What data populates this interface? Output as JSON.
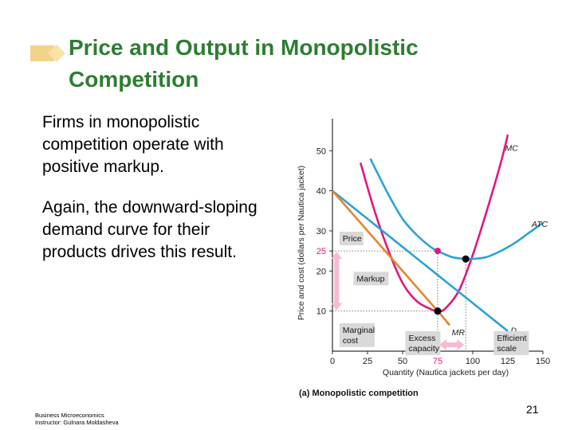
{
  "slide": {
    "title_line1": "Price and Output in Monopolistic",
    "title_line2": "Competition",
    "paragraph1": "Firms in monopolistic competition operate with positive markup.",
    "paragraph2": "Again, the downward-sloping demand curve for their products drives this result.",
    "footer_line1": "Business Microeconomics",
    "footer_line2": "Instructor: Gulnara Moldasheva",
    "page_number": "21"
  },
  "colors": {
    "title": "#2e7d32",
    "title_deco": "#f3d28a",
    "mc": "#e0187f",
    "atc": "#29a3d8",
    "demand": "#29a3d8",
    "mr": "#e8842a",
    "pink_marker": "#f06aa9",
    "label_box": "#d9d9d9",
    "arrow": "#f7b9d3"
  },
  "chart_data": {
    "type": "line",
    "title": "(a) Monopolistic competition",
    "xlabel": "Quantity (Nautica jackets per day)",
    "ylabel": "Price and cost (dollars per Nautica jacket)",
    "xlim": [
      0,
      150
    ],
    "ylim": [
      0,
      58
    ],
    "xticks": [
      {
        "value": 0,
        "label": "0"
      },
      {
        "value": 25,
        "label": "25"
      },
      {
        "value": 50,
        "label": "50"
      },
      {
        "value": 75,
        "label": "75",
        "highlight": true
      },
      {
        "value": 100,
        "label": "100"
      },
      {
        "value": 125,
        "label": "125"
      },
      {
        "value": 150,
        "label": "150"
      }
    ],
    "yticks": [
      {
        "value": 10,
        "label": "10"
      },
      {
        "value": 20,
        "label": "20"
      },
      {
        "value": 25,
        "label": "25",
        "highlight": true
      },
      {
        "value": 30,
        "label": "30"
      },
      {
        "value": 40,
        "label": "40"
      },
      {
        "value": 50,
        "label": "50"
      }
    ],
    "series": [
      {
        "name": "MC",
        "color": "#e0187f",
        "x": [
          20,
          30,
          40,
          50,
          60,
          70,
          75,
          80,
          90,
          100,
          110,
          120,
          125
        ],
        "y": [
          47,
          35,
          25,
          17,
          12.5,
          10.5,
          10,
          10.5,
          15,
          24,
          35,
          47,
          54
        ]
      },
      {
        "name": "ATC",
        "color": "#29a3d8",
        "x": [
          27,
          40,
          50,
          60,
          70,
          75,
          85,
          95,
          100,
          110,
          120,
          130,
          140,
          150
        ],
        "y": [
          48,
          39,
          33,
          29,
          26,
          25,
          23.5,
          23,
          23,
          23.5,
          25,
          27,
          29.5,
          32
        ]
      },
      {
        "name": "D",
        "color": "#29a3d8",
        "x": [
          0,
          125
        ],
        "y": [
          40,
          5
        ]
      },
      {
        "name": "MR",
        "color": "#e8842a",
        "x": [
          0,
          75,
          82
        ],
        "y": [
          40,
          10,
          7
        ]
      }
    ],
    "points": [
      {
        "x": 75,
        "y": 25,
        "color": "#e0187f"
      },
      {
        "x": 75,
        "y": 10,
        "color": "#000000"
      },
      {
        "x": 95,
        "y": 23,
        "color": "#000000"
      }
    ],
    "label_boxes": [
      {
        "text": "Price",
        "x": 5,
        "y": 29
      },
      {
        "text": "Markup",
        "x": 15,
        "y": 19
      },
      {
        "text": "Marginal cost",
        "x": 5,
        "y": 5
      },
      {
        "text": "Excess capacity",
        "x": 52,
        "y": 3
      },
      {
        "text": "Efficient scale",
        "x": 115,
        "y": 3
      }
    ],
    "annotations": [
      {
        "text": "MC",
        "x": 123,
        "y": 50
      },
      {
        "text": "ATC",
        "x": 142,
        "y": 31
      },
      {
        "text": "D",
        "x": 127,
        "y": 4.5
      },
      {
        "text": "MR",
        "x": 85,
        "y": 4
      }
    ],
    "grid": false
  }
}
